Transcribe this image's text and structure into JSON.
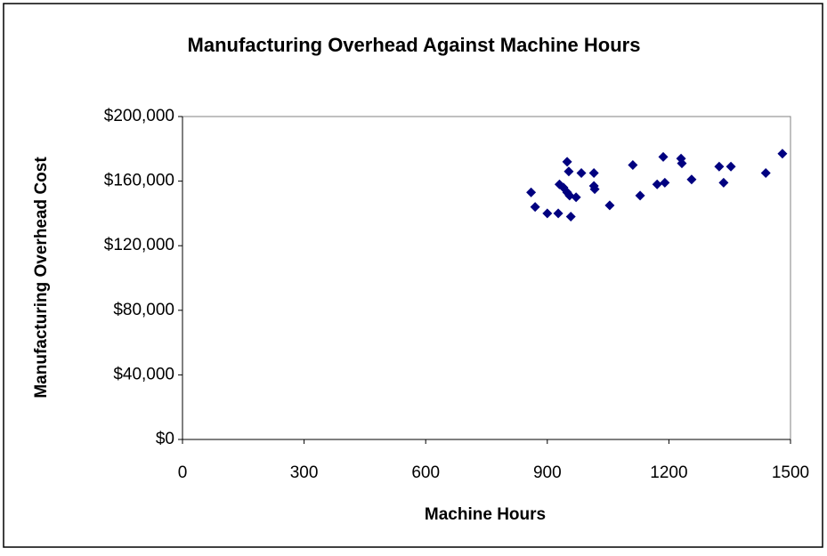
{
  "chart_data": {
    "type": "scatter",
    "title": "Manufacturing Overhead Against Machine Hours",
    "x_label": "Machine Hours",
    "y_label": "Manufacturing Overhead Cost",
    "color": "#000080",
    "x": [
      860,
      870,
      900,
      927,
      930,
      940,
      949,
      949,
      953,
      955,
      958,
      971,
      984,
      1015,
      1015,
      1017,
      1054,
      1111,
      1129,
      1171,
      1186,
      1190,
      1230,
      1232,
      1256,
      1324,
      1335,
      1353,
      1439,
      1480
    ],
    "values": [
      153000,
      144000,
      140000,
      140000,
      158000,
      156000,
      153000,
      172000,
      166000,
      151000,
      138000,
      150000,
      165000,
      165000,
      157000,
      155000,
      145000,
      170000,
      151000,
      158000,
      175000,
      159000,
      174000,
      171000,
      161000,
      169000,
      159000,
      169000,
      165000,
      177000
    ],
    "xlim": [
      0,
      1500
    ],
    "xticks": [
      0,
      300,
      600,
      900,
      1200,
      1500
    ],
    "ylim": [
      0,
      200000
    ],
    "yticks": [
      {
        "value": 0,
        "label": "$0"
      },
      {
        "value": 40000,
        "label": "$40,000"
      },
      {
        "value": 80000,
        "label": "$80,000"
      },
      {
        "value": 120000,
        "label": "$120,000"
      },
      {
        "value": 160000,
        "label": "$160,000"
      },
      {
        "value": 200000,
        "label": "$200,000"
      }
    ],
    "grid": false
  }
}
